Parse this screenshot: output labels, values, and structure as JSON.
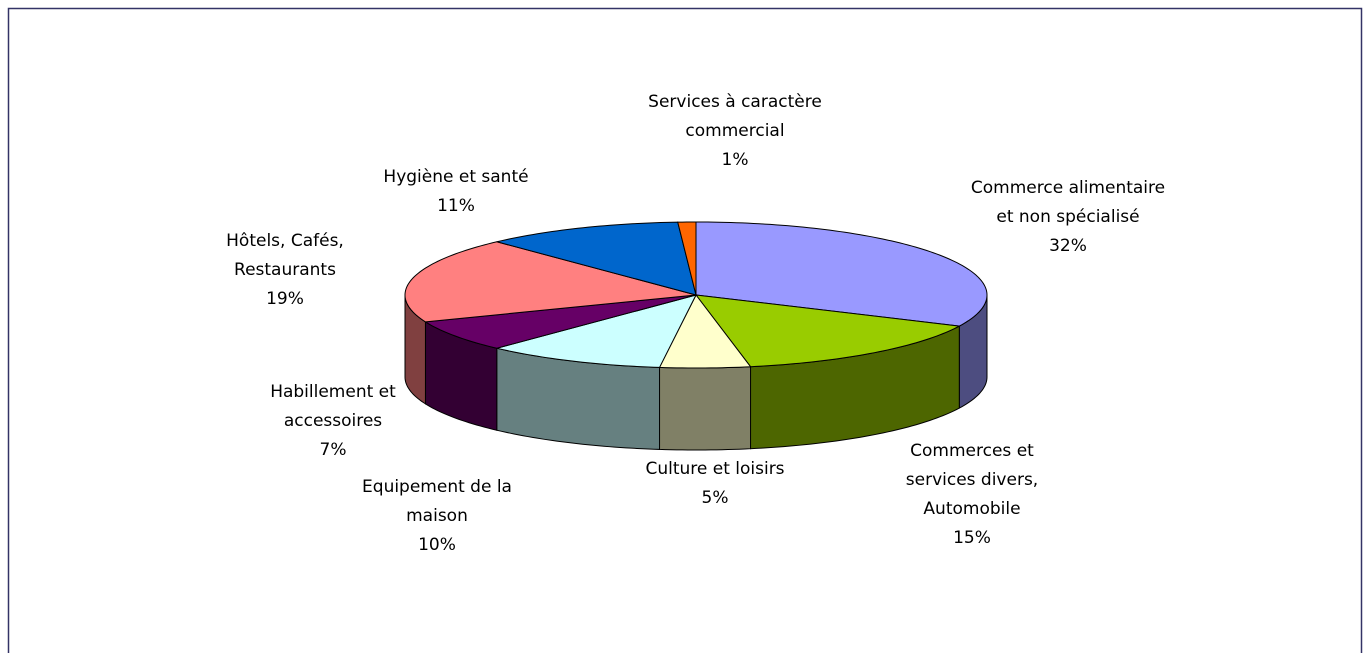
{
  "chart_data": {
    "type": "pie3d",
    "categories": [
      "Commerce alimentaire et non spécialisé",
      "Commerces et services divers, Automobile",
      "Culture et loisirs",
      "Equipement de la maison",
      "Habillement et accessoires",
      "Hôtels, Cafés, Restaurants",
      "Hygiène et santé",
      "Services à caractère commercial"
    ],
    "values": [
      32,
      15,
      5,
      10,
      7,
      19,
      11,
      1
    ],
    "value_labels": [
      "32%",
      "15%",
      "5%",
      "10%",
      "7%",
      "19%",
      "11%",
      "1%"
    ],
    "colors": [
      "#9999ff",
      "#99cc00",
      "#ffffcc",
      "#ccffff",
      "#660066",
      "#ff8080",
      "#0066cc",
      "#ff6600"
    ]
  }
}
